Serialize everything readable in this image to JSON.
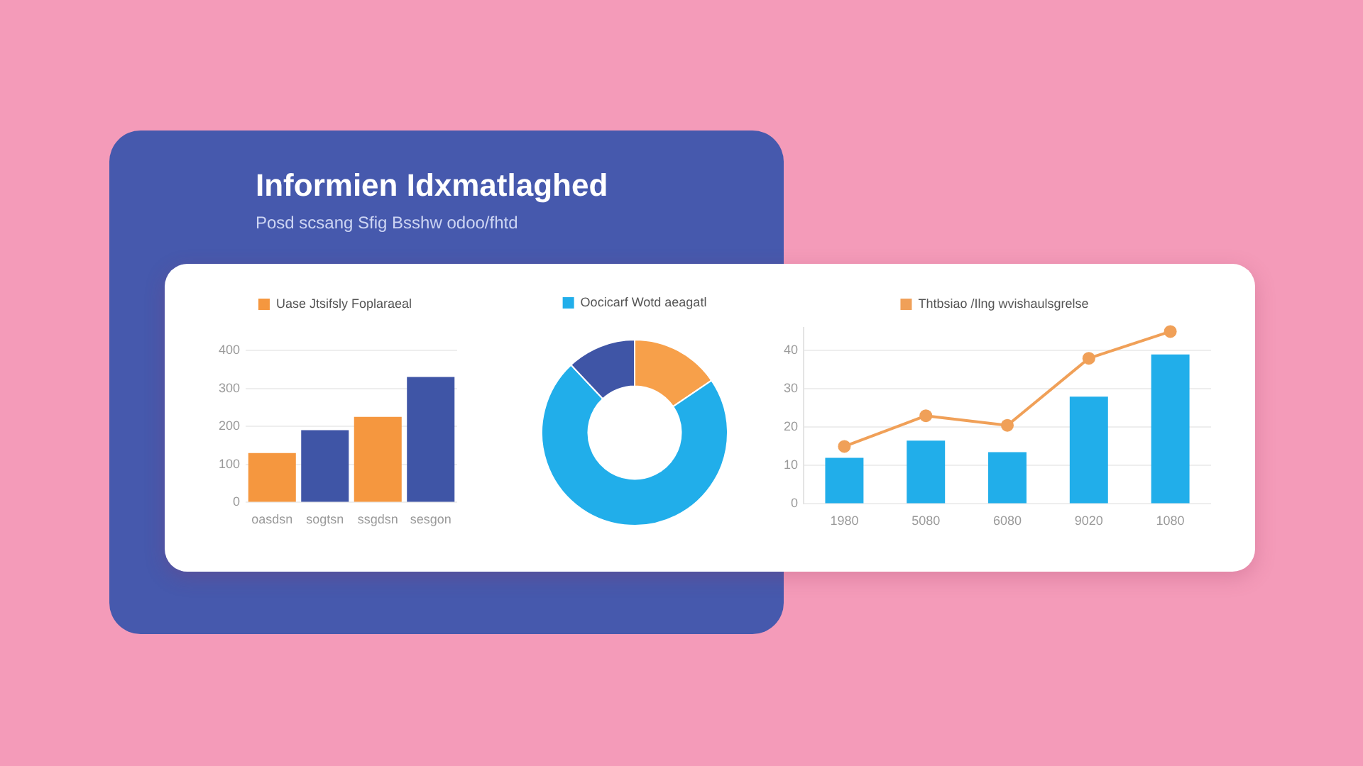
{
  "chart_data": [
    {
      "type": "other",
      "title": "Informien Idxmatlaghed",
      "subtitle": "Posd scsang Sfig Bsshw odoo/fhtd"
    },
    {
      "type": "bar",
      "categories": [
        "oasdsn",
        "sogtsn",
        "ssgdsn",
        "sesgon"
      ],
      "series": [
        {
          "name": "Uase Jtsifsly Foplaraeal",
          "color": "#f5973f",
          "values": [
            130,
            null,
            225,
            null
          ]
        },
        {
          "color": "#3f55a6",
          "values": [
            null,
            190,
            null,
            330
          ]
        }
      ],
      "ylim": [
        0,
        400
      ],
      "yticks": [
        0,
        100,
        200,
        300,
        400
      ],
      "grid": "y",
      "legend": "top"
    },
    {
      "type": "donut",
      "categories": [
        null,
        "Oocicarf Wotd aeagatl",
        null
      ],
      "values": [
        15.5,
        72.5,
        12
      ],
      "colors": [
        "#f7a04a",
        "#21aeea",
        "#3f55a6"
      ],
      "legend": "top"
    },
    {
      "type": "bar",
      "categories": [
        "1980",
        "5080",
        "6080",
        "9020",
        "1080"
      ],
      "series": [
        {
          "color": "#21aeea",
          "values": [
            12,
            16.5,
            13.5,
            28,
            39
          ]
        },
        {
          "type": "line",
          "name": "Thtbsiao /Ilng wvishaulsgrelse",
          "color": "#f0a058",
          "values": [
            15,
            23,
            20.5,
            38,
            45
          ]
        }
      ],
      "ylim": [
        0,
        46
      ],
      "yticks": [
        0,
        10,
        20,
        30,
        40
      ],
      "grid": "y",
      "legend": "top",
      "marker": "circle"
    }
  ]
}
